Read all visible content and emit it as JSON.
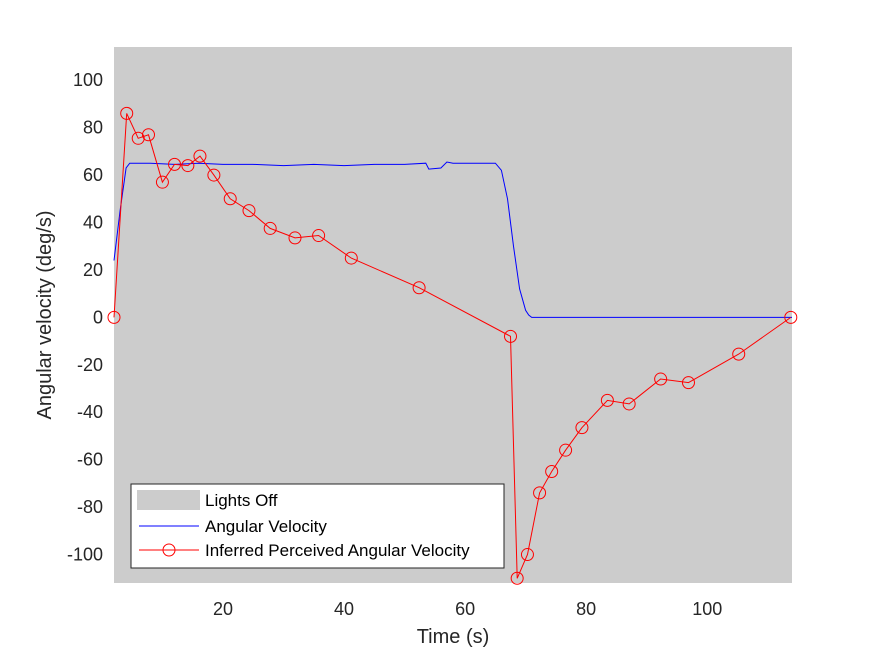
{
  "chart_data": {
    "type": "line",
    "title": "",
    "xlabel": "Time (s)",
    "ylabel": "Angular velocity (deg/s)",
    "xlim": [
      2,
      114
    ],
    "ylim": [
      -112,
      114
    ],
    "xticks": [
      20,
      40,
      60,
      80,
      100
    ],
    "yticks": [
      100,
      80,
      60,
      40,
      20,
      0,
      -20,
      -40,
      -60,
      -80,
      -100
    ],
    "grid": false,
    "legend_position": "bottom-left",
    "background_region": {
      "name": "Lights Off",
      "color": "#cccccc",
      "x_range": [
        2,
        114
      ]
    },
    "series": [
      {
        "name": "Angular Velocity",
        "color": "#0000ff",
        "marker": "none",
        "x": [
          2,
          3,
          4,
          4.6,
          5,
          8,
          12,
          16,
          20,
          25,
          30,
          35,
          40,
          45,
          50,
          53.5,
          54,
          56,
          57,
          58,
          62,
          65,
          66,
          67,
          68,
          69,
          70,
          70.5,
          71,
          75,
          80,
          90,
          100,
          114
        ],
        "y": [
          24,
          45,
          63,
          65,
          65,
          65,
          64.5,
          65,
          64.5,
          64.5,
          64,
          64.5,
          64,
          64.5,
          64.5,
          65,
          62.5,
          63,
          65.5,
          65,
          65,
          65,
          62,
          50,
          30,
          12,
          3,
          1,
          0,
          0,
          0,
          0,
          0,
          0
        ]
      },
      {
        "name": "Inferred Perceived Angular Velocity",
        "color": "#ff0000",
        "marker": "circle",
        "x": [
          2,
          4.1,
          6,
          7.7,
          10,
          12,
          14.2,
          16.2,
          18.5,
          21.2,
          24.3,
          27.8,
          31.9,
          35.8,
          41.2,
          52.4,
          67.5,
          68.6,
          70.3,
          72.3,
          74.3,
          76.6,
          79.3,
          83.5,
          87.1,
          92.3,
          96.9,
          105.2,
          113.8
        ],
        "y": [
          0,
          86,
          75.5,
          77,
          57,
          64.5,
          64,
          68,
          60,
          50,
          45,
          37.5,
          33.5,
          34.5,
          25,
          12.5,
          -8,
          -110,
          -100,
          -74,
          -65,
          -56,
          -46.5,
          -35,
          -36.5,
          -26,
          -27.5,
          -15.5,
          0
        ]
      }
    ]
  }
}
